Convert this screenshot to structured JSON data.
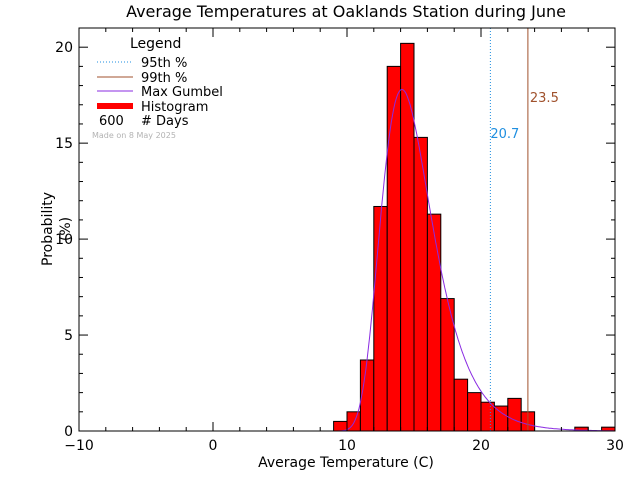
{
  "chart_data": {
    "type": "bar",
    "title": "Average Temperatures at Oaklands Station during June",
    "xlabel": "Average Temperature (C)",
    "ylabel": "Probability\n(%)",
    "xlim": [
      -10,
      30
    ],
    "ylim": [
      0,
      21
    ],
    "xticks": [
      -10,
      0,
      10,
      20,
      30
    ],
    "yticks": [
      0,
      5,
      10,
      15,
      20
    ],
    "bin_width": 1,
    "bins_left": [
      9,
      10,
      11,
      12,
      13,
      14,
      15,
      16,
      17,
      18,
      19,
      20,
      21,
      22,
      23,
      27,
      29
    ],
    "values": [
      0.5,
      1.0,
      3.7,
      11.7,
      19.0,
      20.2,
      15.3,
      11.3,
      6.9,
      2.7,
      2.0,
      1.5,
      1.3,
      1.7,
      1.0,
      0.2,
      0.2
    ],
    "gumbel": {
      "mode": 14.1,
      "scale": 1.9,
      "peak": 17.8
    },
    "percentiles": [
      {
        "name": "95th %",
        "value": 20.7,
        "label": "20.7",
        "color": "#1f8fe0"
      },
      {
        "name": "99th %",
        "value": 23.5,
        "label": "23.5",
        "color": "#a0522d"
      }
    ],
    "legend": {
      "title": "Legend",
      "items": [
        "95th %",
        "99th %",
        "Max Gumbel",
        "Histogram"
      ],
      "count": "600",
      "count_label": "# Days"
    },
    "watermark": "Made on 8 May 2025",
    "colors": {
      "histogram": "#ff0000",
      "gumbel": "#8a2be2"
    }
  }
}
